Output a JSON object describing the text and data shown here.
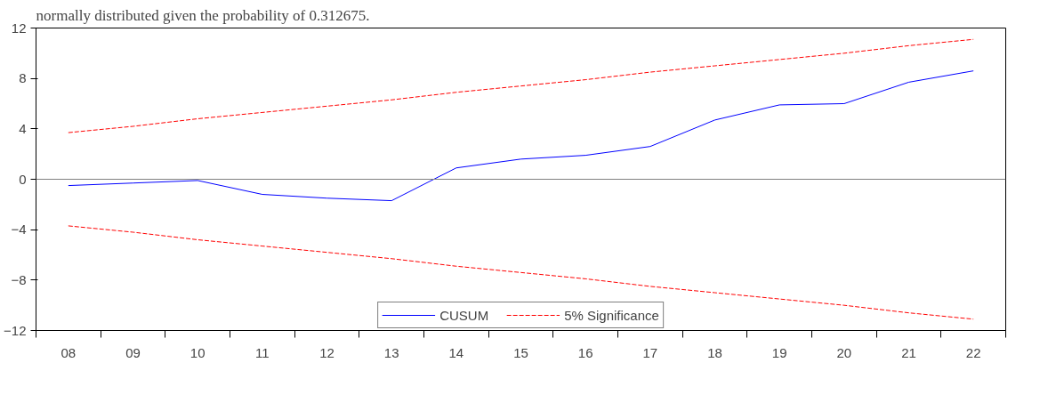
{
  "chart_data": {
    "type": "line",
    "annotations": [
      "normally distributed given the probability of 0.312675."
    ],
    "categories": [
      "08",
      "09",
      "10",
      "11",
      "12",
      "13",
      "14",
      "15",
      "16",
      "17",
      "18",
      "19",
      "20",
      "21",
      "22"
    ],
    "series": [
      {
        "name": "CUSUM",
        "color": "#0000ff",
        "line_style": "solid",
        "values": [
          -0.5,
          -0.3,
          -0.1,
          -1.2,
          -1.5,
          -1.7,
          0.9,
          1.6,
          1.9,
          2.6,
          4.7,
          5.9,
          6.0,
          7.7,
          8.6
        ]
      },
      {
        "name": "5% Significance",
        "color": "#ff0000",
        "line_style": "dashed",
        "values": [
          3.7,
          4.2,
          4.8,
          5.3,
          5.8,
          6.3,
          6.9,
          7.4,
          7.9,
          8.5,
          9.0,
          9.5,
          10.0,
          10.6,
          11.1
        ]
      },
      {
        "color": "#ff0000",
        "line_style": "dashed",
        "values": [
          -3.7,
          -4.2,
          -4.8,
          -5.3,
          -5.8,
          -6.3,
          -6.9,
          -7.4,
          -7.9,
          -8.5,
          -9.0,
          -9.5,
          -10.0,
          -10.6,
          -11.1
        ]
      }
    ],
    "ylim": [
      -12,
      12
    ],
    "yticks": [
      -12,
      -8,
      -4,
      0,
      4,
      8,
      12
    ],
    "ref_lines": [
      {
        "axis": "y",
        "value": 0,
        "color": "#808080"
      }
    ],
    "grid": false,
    "legend": "bottom",
    "marker": "none"
  }
}
